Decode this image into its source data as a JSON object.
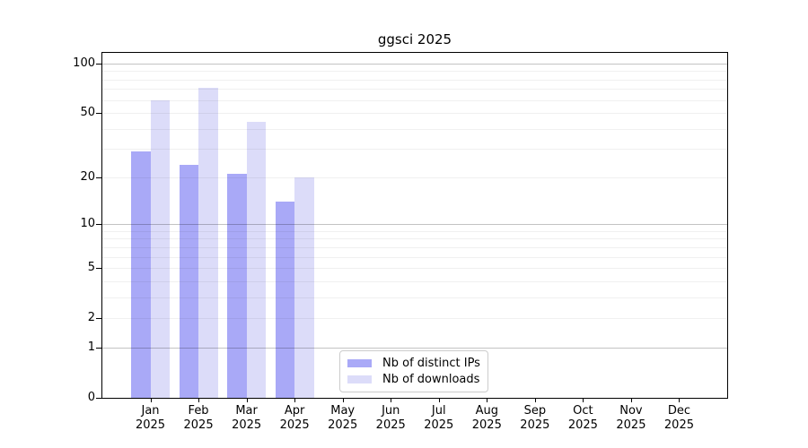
{
  "title": "ggsci 2025",
  "colors": {
    "bar_distinct_ips": "#a9a9f7",
    "bar_downloads": "#dcdcf9",
    "axis": "#000000",
    "grid_major": "#c2c2c2",
    "grid_minor": "#f0f0f0",
    "legend_border": "#cccccc",
    "background": "#ffffff",
    "text": "#000000"
  },
  "legend": {
    "items": [
      {
        "label": "Nb of distinct IPs"
      },
      {
        "label": "Nb of downloads"
      }
    ]
  },
  "chart_data": {
    "type": "bar",
    "title": "ggsci 2025",
    "categories": [
      "Jan",
      "Feb",
      "Mar",
      "Apr",
      "May",
      "Jun",
      "Jul",
      "Aug",
      "Sep",
      "Oct",
      "Nov",
      "Dec"
    ],
    "x_year_label": "2025",
    "series": [
      {
        "name": "Nb of distinct IPs",
        "color": "#a9a9f7",
        "values": [
          29,
          24,
          21,
          14,
          0,
          0,
          0,
          0,
          0,
          0,
          0,
          0
        ]
      },
      {
        "name": "Nb of downloads",
        "color": "#dcdcf9",
        "values": [
          60,
          71,
          44,
          20,
          0,
          0,
          0,
          0,
          0,
          0,
          0,
          0
        ]
      }
    ],
    "yscale": "log1p",
    "ylim": [
      0,
      116
    ],
    "y_tick_labels": [
      "100",
      "50",
      "20",
      "10",
      "5",
      "2",
      "1",
      "0"
    ],
    "grid": {
      "on": true,
      "major_values": [
        100,
        10,
        1
      ],
      "minor_values": [
        90,
        80,
        70,
        60,
        50,
        40,
        30,
        20,
        9,
        8,
        7,
        6,
        5,
        4,
        3,
        2
      ]
    },
    "legend_position": "bottom-center"
  }
}
